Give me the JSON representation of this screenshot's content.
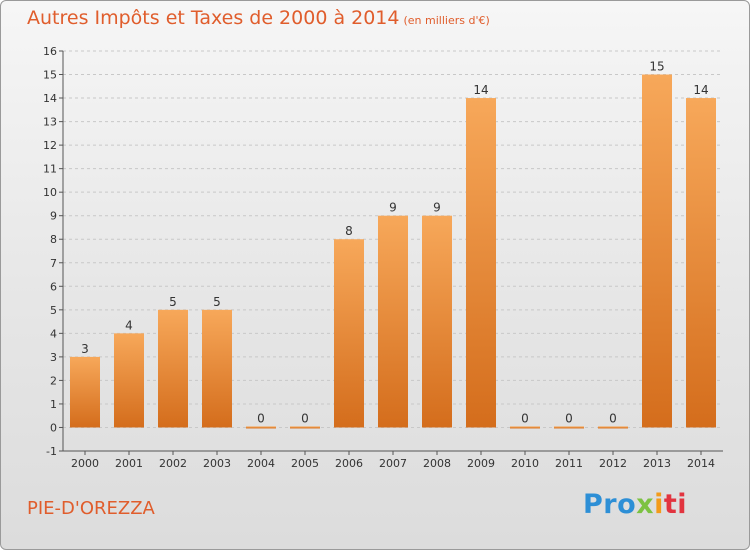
{
  "header": {
    "title": "Autres Impôts et Taxes de 2000 à 2014",
    "subtitle": "(en milliers d'€)"
  },
  "footer": {
    "place": "PIE-D'OREZZA",
    "logo": [
      "Pro",
      "x",
      "i",
      "ti"
    ]
  },
  "colors": {
    "bar_top": "#f7a85a",
    "bar_bottom": "#d46d1c",
    "title": "#e05d2c",
    "grid": "#c8c8c8"
  },
  "chart_data": {
    "type": "bar",
    "title": "Autres Impôts et Taxes de 2000 à 2014",
    "xlabel": "",
    "ylabel": "",
    "categories": [
      "2000",
      "2001",
      "2002",
      "2003",
      "2004",
      "2005",
      "2006",
      "2007",
      "2008",
      "2009",
      "2010",
      "2011",
      "2012",
      "2013",
      "2014"
    ],
    "values": [
      3,
      4,
      5,
      5,
      0,
      0,
      8,
      9,
      9,
      14,
      0,
      0,
      0,
      15,
      14
    ],
    "ylim": [
      -1,
      16
    ],
    "yticks": [
      -1,
      0,
      1,
      2,
      3,
      4,
      5,
      6,
      7,
      8,
      9,
      10,
      11,
      12,
      13,
      14,
      15,
      16
    ],
    "grid": true,
    "legend": "none"
  }
}
